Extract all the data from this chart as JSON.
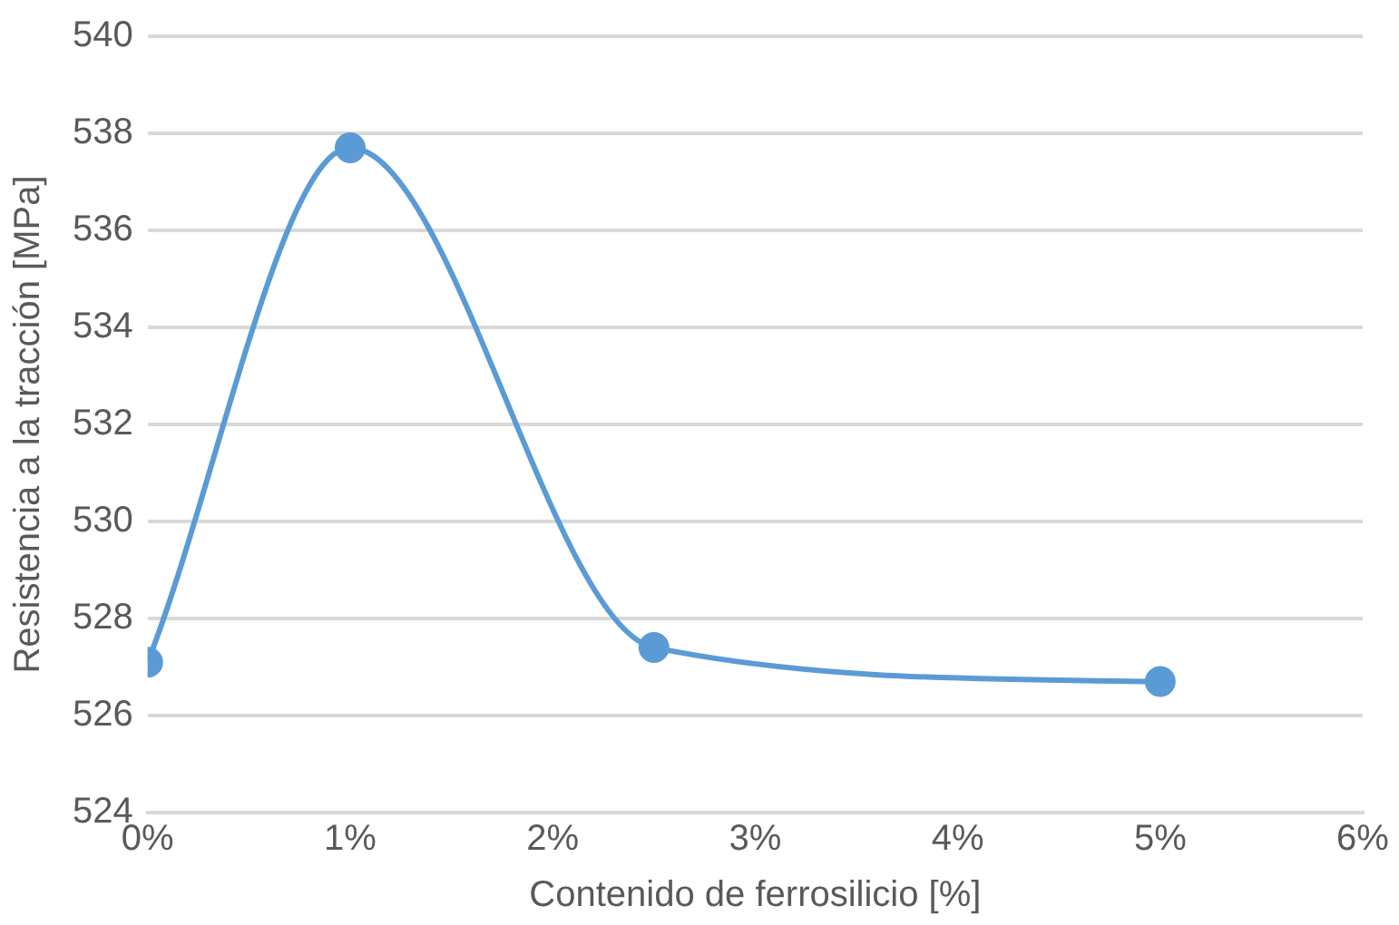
{
  "chart_data": {
    "type": "line",
    "xlabel": "Contenido de ferrosilicio [%]",
    "ylabel": "Resistencia a la tracción [MPa]",
    "x": [
      0,
      1,
      2.5,
      5
    ],
    "series": [
      {
        "color": "#5b9bd5",
        "values": [
          527.1,
          537.7,
          527.4,
          526.7
        ]
      }
    ],
    "xlim": [
      0,
      6
    ],
    "xticks": [
      {
        "value": 0,
        "label": "0%"
      },
      {
        "value": 1,
        "label": "1%"
      },
      {
        "value": 2,
        "label": "2%"
      },
      {
        "value": 3,
        "label": "3%"
      },
      {
        "value": 4,
        "label": "4%"
      },
      {
        "value": 5,
        "label": "5%"
      },
      {
        "value": 6,
        "label": "6%"
      }
    ],
    "ylim": [
      524,
      540
    ],
    "yticks": [
      524,
      526,
      528,
      530,
      532,
      534,
      536,
      538,
      540
    ],
    "grid": "y",
    "legend": false,
    "marker": "circle",
    "line_style": "solid"
  }
}
